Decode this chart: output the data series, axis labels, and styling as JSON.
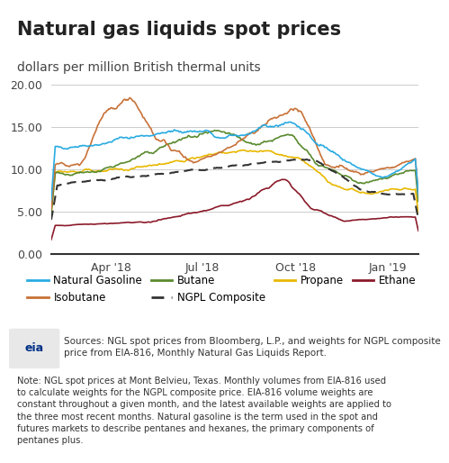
{
  "title": "Natural gas liquids spot prices",
  "ylabel": "dollars per million British thermal units",
  "ylim": [
    0.0,
    20.0
  ],
  "yticks": [
    0.0,
    5.0,
    10.0,
    15.0,
    20.0
  ],
  "title_fontsize": 15,
  "subtitle_fontsize": 10,
  "background_color": "#ffffff",
  "plot_bg_color": "#ffffff",
  "series_colors": {
    "natural_gasoline": "#29ABE2",
    "isobutane": "#C87137",
    "butane": "#5A8A2E",
    "ngpl_composite": "#333333",
    "propane": "#E8B800",
    "ethane": "#8B1A2A"
  },
  "source_text": "Sources: NGL spot prices from Bloomberg, L.P., and weights for NGPL composite\nprice from EIA-816, Monthly Natural Gas Liquids Report.",
  "note_text": "Note: NGL spot prices at Mont Belvieu, Texas. Monthly volumes from EIA-816 used\nto calculate weights for the NGPL composite price. EIA-816 volume weights are\nconstant throughout a given month, and the latest available weights are applied to\nthe three most recent months. Natural gasoline is the term used in the spot and\nfutures markets to describe pentanes and hexanes, the primary components of\npentanes plus."
}
